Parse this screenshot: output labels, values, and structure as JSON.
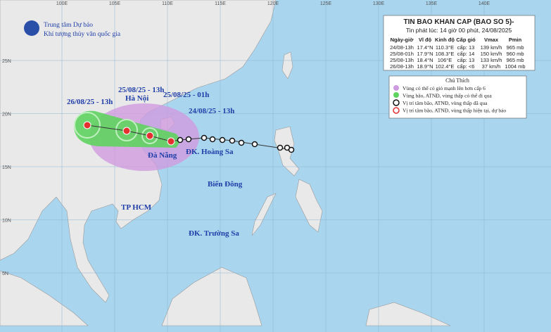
{
  "header": {
    "org_line1": "Trung tâm Dự báo",
    "org_line2": "Khí tượng thủy văn quốc gia"
  },
  "bulletin": {
    "title": "TIN BAO KHAN CAP (BAO SO 5)-",
    "issued": "Tin phát lúc: 14 giờ 00 phút, 24/08/2025",
    "columns": [
      "Ngày-giờ",
      "Vĩ độ",
      "Kinh độ",
      "Cấp gió",
      "Vmax",
      "Pmin"
    ],
    "rows": [
      [
        "24/08-13h",
        "17.4°N",
        "110.3°E",
        "cấp: 13",
        "139 km/h",
        "965 mb"
      ],
      [
        "25/08-01h",
        "17.9°N",
        "108.3°E",
        "cấp: 14",
        "150 km/h",
        "960 mb"
      ],
      [
        "25/08-13h",
        "18.4°N",
        "106°E",
        "cấp: 13",
        "133 km/h",
        "965 mb"
      ],
      [
        "26/08-13h",
        "18.9°N",
        "102.4°E",
        "cấp: <6",
        "37 km/h",
        "1004 mb"
      ]
    ]
  },
  "legend": {
    "title": "Chú Thích",
    "items": [
      "Vùng có thể có gió mạnh lên hơn cấp 6",
      "Vùng bão, ATNĐ, vùng thấp có thể đi qua",
      "Vị trí tâm bão, ATNĐ, vùng thấp đã qua",
      "Vị trí tâm bão, ATNĐ, vùng thấp hiện tại, dự báo"
    ]
  },
  "map": {
    "lon_labels": [
      "100E",
      "105E",
      "110E",
      "115E",
      "120E",
      "125E",
      "130E",
      "135E",
      "140E"
    ],
    "lat_labels": [
      "25N",
      "20N",
      "15N",
      "10N",
      "5N"
    ],
    "track_labels": [
      "26/08/25 - 13h",
      "25/08/25 - 13h",
      "25/08/25 - 01h",
      "24/08/25 - 13h"
    ],
    "places": [
      "Hà Nội",
      "Đà Nẵng",
      "ĐK. Hoàng Sa",
      "Biển Đông",
      "TP HCM",
      "ĐK. Trường Sa"
    ]
  }
}
